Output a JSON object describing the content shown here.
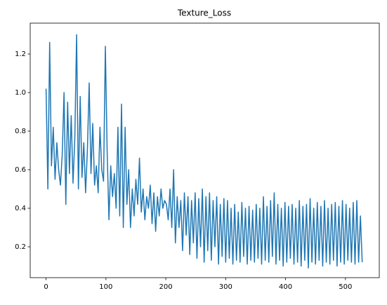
{
  "chart_data": {
    "type": "line",
    "title": "Texture_Loss",
    "x": [
      0,
      3,
      6,
      9,
      12,
      15,
      18,
      21,
      24,
      27,
      30,
      33,
      36,
      39,
      42,
      45,
      48,
      51,
      54,
      57,
      60,
      63,
      66,
      69,
      72,
      75,
      78,
      81,
      84,
      87,
      90,
      93,
      96,
      99,
      102,
      105,
      108,
      111,
      114,
      117,
      120,
      123,
      126,
      129,
      132,
      135,
      138,
      141,
      144,
      147,
      150,
      153,
      156,
      159,
      162,
      165,
      168,
      171,
      174,
      177,
      180,
      183,
      186,
      189,
      192,
      195,
      198,
      201,
      204,
      207,
      210,
      213,
      216,
      219,
      222,
      225,
      228,
      231,
      234,
      237,
      240,
      243,
      246,
      249,
      252,
      255,
      258,
      261,
      264,
      267,
      270,
      273,
      276,
      279,
      282,
      285,
      288,
      291,
      294,
      297,
      300,
      303,
      306,
      309,
      312,
      315,
      318,
      321,
      324,
      327,
      330,
      333,
      336,
      339,
      342,
      345,
      348,
      351,
      354,
      357,
      360,
      363,
      366,
      369,
      372,
      375,
      378,
      381,
      384,
      387,
      390,
      393,
      396,
      399,
      402,
      405,
      408,
      411,
      414,
      417,
      420,
      423,
      426,
      429,
      432,
      435,
      438,
      441,
      444,
      447,
      450,
      453,
      456,
      459,
      462,
      465,
      468,
      471,
      474,
      477,
      480,
      483,
      486,
      489,
      492,
      495,
      498,
      501,
      504,
      507,
      510,
      513,
      516,
      519,
      522,
      525,
      528
    ],
    "series": [
      {
        "name": "Texture_Loss",
        "color": "#1f77b4",
        "values": [
          1.02,
          0.5,
          1.26,
          0.62,
          0.82,
          0.55,
          0.74,
          0.6,
          0.52,
          0.68,
          1.0,
          0.42,
          0.95,
          0.58,
          0.88,
          0.53,
          0.76,
          1.3,
          0.5,
          0.98,
          0.56,
          0.74,
          0.48,
          0.7,
          1.05,
          0.58,
          0.84,
          0.52,
          0.62,
          0.48,
          0.82,
          0.6,
          0.54,
          1.24,
          0.7,
          0.34,
          0.62,
          0.46,
          0.58,
          0.4,
          0.82,
          0.36,
          0.94,
          0.3,
          0.82,
          0.42,
          0.6,
          0.3,
          0.5,
          0.36,
          0.55,
          0.42,
          0.66,
          0.38,
          0.5,
          0.34,
          0.46,
          0.4,
          0.52,
          0.32,
          0.48,
          0.28,
          0.46,
          0.36,
          0.5,
          0.4,
          0.44,
          0.42,
          0.34,
          0.5,
          0.3,
          0.6,
          0.22,
          0.46,
          0.3,
          0.44,
          0.18,
          0.48,
          0.26,
          0.46,
          0.16,
          0.44,
          0.22,
          0.48,
          0.14,
          0.45,
          0.2,
          0.5,
          0.12,
          0.46,
          0.18,
          0.48,
          0.13,
          0.44,
          0.2,
          0.46,
          0.11,
          0.42,
          0.15,
          0.45,
          0.12,
          0.44,
          0.14,
          0.4,
          0.11,
          0.42,
          0.13,
          0.38,
          0.12,
          0.43,
          0.15,
          0.4,
          0.11,
          0.41,
          0.13,
          0.39,
          0.12,
          0.42,
          0.14,
          0.4,
          0.11,
          0.46,
          0.13,
          0.41,
          0.12,
          0.44,
          0.15,
          0.48,
          0.11,
          0.42,
          0.13,
          0.4,
          0.1,
          0.43,
          0.12,
          0.41,
          0.14,
          0.42,
          0.11,
          0.4,
          0.12,
          0.44,
          0.1,
          0.41,
          0.13,
          0.42,
          0.09,
          0.45,
          0.12,
          0.4,
          0.11,
          0.43,
          0.13,
          0.41,
          0.1,
          0.44,
          0.12,
          0.4,
          0.11,
          0.42,
          0.13,
          0.43,
          0.1,
          0.41,
          0.12,
          0.44,
          0.11,
          0.42,
          0.13,
          0.4,
          0.12,
          0.43,
          0.11,
          0.44,
          0.12,
          0.36,
          0.12
        ]
      }
    ],
    "xlim": [
      -26.5,
      556.5
    ],
    "xticks": [
      0,
      100,
      200,
      300,
      400,
      500
    ],
    "ylim": [
      0.04,
      1.36
    ],
    "yticks": [
      0.2,
      0.4,
      0.6,
      0.8,
      {
        "value": 1,
        "label": "1.0"
      },
      1.2
    ],
    "grid": false
  }
}
